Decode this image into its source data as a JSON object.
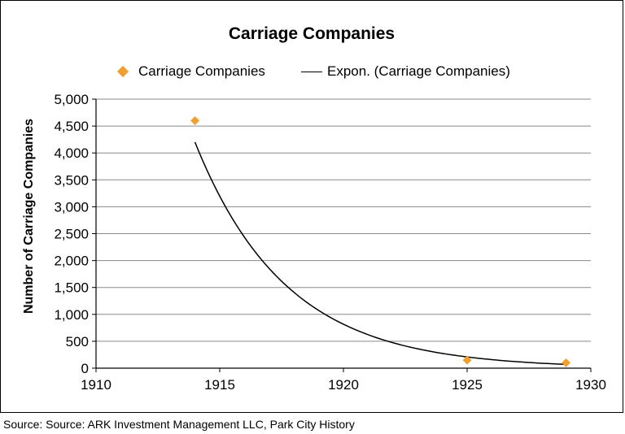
{
  "chart_data": {
    "type": "scatter",
    "title": "Carriage Companies",
    "ylabel": "Number of Carriage Companies",
    "xlabel": "",
    "xlim": [
      1910,
      1930
    ],
    "ylim": [
      0,
      5000
    ],
    "xticks": [
      "1910",
      "1915",
      "1920",
      "1925",
      "1930"
    ],
    "yticks": [
      "0",
      "500",
      "1,000",
      "1,500",
      "2,000",
      "2,500",
      "3,000",
      "3,500",
      "4,000",
      "4,500",
      "5,000"
    ],
    "grid": true,
    "legend": "top",
    "series": [
      {
        "name": "Carriage Companies",
        "kind": "scatter",
        "color": "#F0A030",
        "marker": "diamond",
        "x": [
          1914,
          1925,
          1929
        ],
        "y": [
          4600,
          150,
          100
        ]
      },
      {
        "name": "Expon. (Carriage Companies)",
        "kind": "trendline",
        "color": "#000000",
        "x": [
          1914,
          1929
        ],
        "y": [
          4200,
          70
        ]
      }
    ]
  },
  "source": "Source: Source: ARK Investment Management LLC, Park City History"
}
